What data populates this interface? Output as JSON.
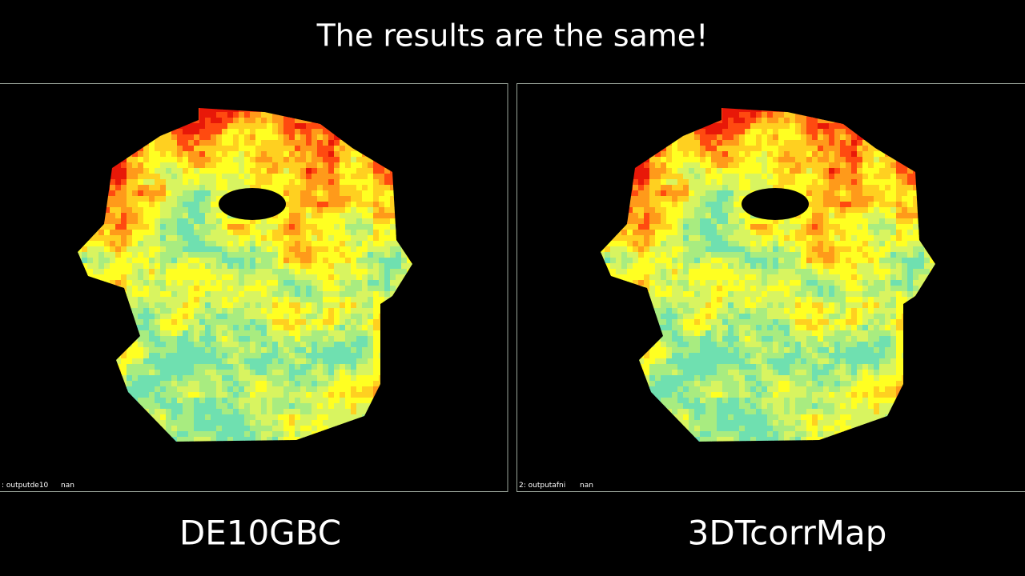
{
  "title": "The results are the same!",
  "panels": [
    {
      "caption": "DE10GBC",
      "overlay_label": ": outputde10",
      "overlay_value": "nan"
    },
    {
      "caption": "3DTcorrMap",
      "overlay_label": "2: outputafni",
      "overlay_value": "nan"
    }
  ]
}
